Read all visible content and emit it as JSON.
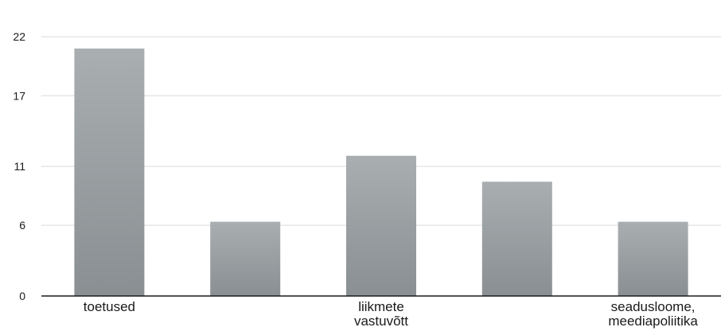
{
  "chart_data": {
    "type": "bar",
    "categories": [
      "toetused",
      "",
      "liikmete vastuvõtt",
      "",
      "seadusloome, meediapoliitika"
    ],
    "category_label_lines": [
      [
        "toetused"
      ],
      [],
      [
        "liikmete",
        "vastuvõtt"
      ],
      [],
      [
        "seadusloome,",
        "meediapoliitika"
      ]
    ],
    "values": [
      21,
      6.3,
      11.9,
      9.7,
      6.3
    ],
    "y_ticks": [
      0,
      6,
      11,
      17,
      22
    ],
    "ylim": [
      0,
      23.5
    ],
    "grid": true,
    "colors": {
      "bar_top": "#a9aeb1",
      "bar_bottom": "#898f92",
      "grid": "#d9d9d9",
      "axis": "#1a1a1a"
    }
  }
}
